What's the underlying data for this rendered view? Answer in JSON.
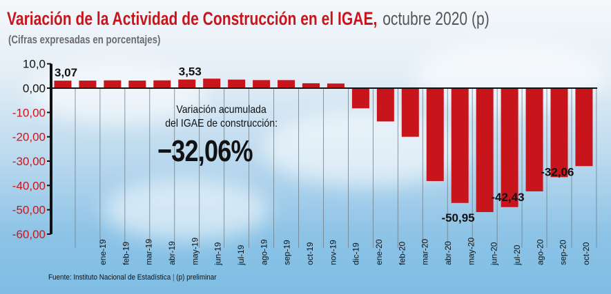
{
  "header": {
    "title": "Variación de la Actividad de Construcción en el IGAE,",
    "period": "octubre 2020 (p)",
    "subtitle": "(Cifras expresadas en porcentajes)"
  },
  "annotation": {
    "line1": "Variación acumulada",
    "line2": "del IGAE de construcción:",
    "value": "−32,06%"
  },
  "source": {
    "text": "Fuente: Instituto Nacional de Estadística",
    "separator": "|",
    "note": "(p) preliminar"
  },
  "colors": {
    "bar": "#c8151b",
    "axis_text_negative": "#c8151b",
    "axis_text_positive": "#111111"
  },
  "chart_data": {
    "type": "bar",
    "title": "Variación de la Actividad de Construcción en el IGAE, octubre 2020 (p)",
    "subtitle": "(Cifras expresadas en porcentajes)",
    "categories": [
      "ene-19",
      "feb-19",
      "mar-19",
      "abr-19",
      "may-19",
      "jun-19",
      "jul-19",
      "ago-19",
      "sep-19",
      "oct-19",
      "nov-19",
      "dic-19",
      "ene-20",
      "feb-20",
      "mar-20",
      "abr-20",
      "may-20",
      "jun-20",
      "jul-20",
      "ago-20",
      "sep-20",
      "oct-20"
    ],
    "values": [
      3.07,
      3.1,
      3.2,
      3.1,
      3.2,
      3.53,
      3.9,
      3.5,
      3.3,
      3.3,
      2.0,
      1.9,
      -8.3,
      -13.7,
      -20.0,
      -38.2,
      -47.2,
      -50.95,
      -48.9,
      -42.43,
      -36.6,
      -32.06
    ],
    "data_labels": [
      {
        "index": 0,
        "text": "3,07"
      },
      {
        "index": 5,
        "text": "3,53"
      },
      {
        "index": 17,
        "text": "-50,95"
      },
      {
        "index": 19,
        "text": "-42,43"
      },
      {
        "index": 21,
        "text": "-32,06"
      }
    ],
    "yticks": [
      "10,0",
      "0,00",
      "-10,00",
      "-20,00",
      "-30,00",
      "-40,00",
      "-50,00",
      "-60,00"
    ],
    "ytick_values": [
      10,
      0,
      -10,
      -20,
      -30,
      -40,
      -50,
      -60
    ],
    "ylim": [
      -60,
      10
    ],
    "grid": "vertical",
    "legend": "none"
  }
}
